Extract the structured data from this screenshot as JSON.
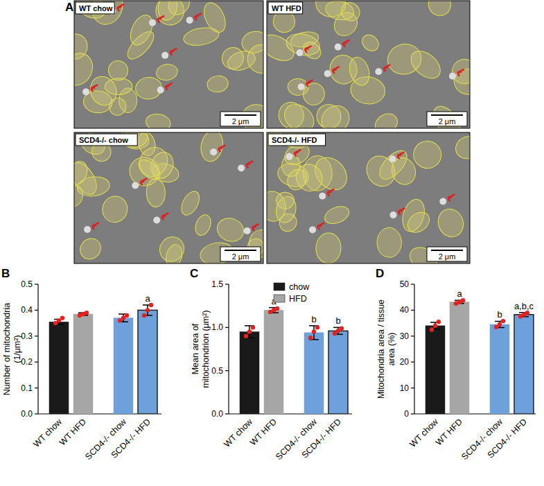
{
  "panel_a": {
    "panel_label": "A",
    "images": [
      {
        "label": "WT chow",
        "scale_bar": "2 μm"
      },
      {
        "label": "WT HFD",
        "scale_bar": "2 μm"
      },
      {
        "label": "SCD4-/- chow",
        "scale_bar": "2 μm"
      },
      {
        "label": "SCD4-/- HFD",
        "scale_bar": "2 μm"
      }
    ]
  },
  "chart_data": [
    {
      "type": "bar",
      "panel_label": "B",
      "y_label": "Number of mitochondria\n(1/μm²)",
      "categories": [
        "WT chow",
        "WT HFD",
        "SCD4-/- chow",
        "SCD4-/- HFD"
      ],
      "values": [
        0.355,
        0.385,
        0.37,
        0.4
      ],
      "errors": [
        0.01,
        0.005,
        0.015,
        0.02
      ],
      "points": [
        [
          0.35,
          0.36,
          0.37
        ],
        [
          0.38,
          0.385,
          0.39
        ],
        [
          0.36,
          0.37,
          0.38
        ],
        [
          0.38,
          0.4,
          0.42
        ]
      ],
      "significance": [
        null,
        null,
        null,
        "a"
      ],
      "colors": [
        "#1a1a1a",
        "#a6a6a6",
        "#6ea0dc",
        "#6ea0dc"
      ],
      "ylim": [
        0,
        0.5
      ],
      "yticks": [
        {
          "value": 0,
          "label": "0.0"
        },
        0.1,
        0.2,
        0.3,
        0.4,
        0.5
      ]
    },
    {
      "type": "bar",
      "panel_label": "C",
      "y_label": "Mean area of\nmitochondrion (μm²)",
      "categories": [
        "WT chow",
        "WT HFD",
        "SCD4-/- chow",
        "SCD4-/- HFD"
      ],
      "values": [
        0.95,
        1.2,
        0.94,
        0.96
      ],
      "errors": [
        0.07,
        0.03,
        0.08,
        0.04
      ],
      "points": [
        [
          0.9,
          0.95,
          1.0
        ],
        [
          1.18,
          1.2,
          1.22
        ],
        [
          0.88,
          0.95,
          1.0
        ],
        [
          0.93,
          0.96,
          0.99
        ]
      ],
      "significance": [
        null,
        "a",
        "b",
        "b"
      ],
      "colors": [
        "#1a1a1a",
        "#a6a6a6",
        "#6ea0dc",
        "#6ea0dc"
      ],
      "legend": "top",
      "legend_items": [
        {
          "name": "chow",
          "color": "#1a1a1a"
        },
        {
          "name": "HFD",
          "color": "#a6a6a6"
        }
      ],
      "ylim": [
        0,
        1.5
      ],
      "yticks": [
        {
          "value": 0,
          "label": "0.0"
        },
        0.5,
        {
          "value": 1,
          "label": "1.0"
        },
        1.5
      ]
    },
    {
      "type": "bar",
      "panel_label": "D",
      "y_label": "Mitochondria area / tissue\narea (%)",
      "categories": [
        "WT chow",
        "WT HFD",
        "SCD4-/- chow",
        "SCD4-/- HFD"
      ],
      "values": [
        34,
        43.2,
        34.5,
        38.3
      ],
      "errors": [
        1.3,
        0.6,
        1.2,
        0.8
      ],
      "points": [
        [
          32.5,
          34,
          35.5
        ],
        [
          42.6,
          43.2,
          43.8
        ],
        [
          33.5,
          34.5,
          35.8
        ],
        [
          37.6,
          38.3,
          39
        ]
      ],
      "significance": [
        null,
        "a",
        "b",
        "a,b,c"
      ],
      "colors": [
        "#1a1a1a",
        "#a6a6a6",
        "#6ea0dc",
        "#6ea0dc"
      ],
      "ylim": [
        0,
        50
      ],
      "yticks": [
        0,
        10,
        20,
        30,
        40,
        50
      ]
    }
  ]
}
